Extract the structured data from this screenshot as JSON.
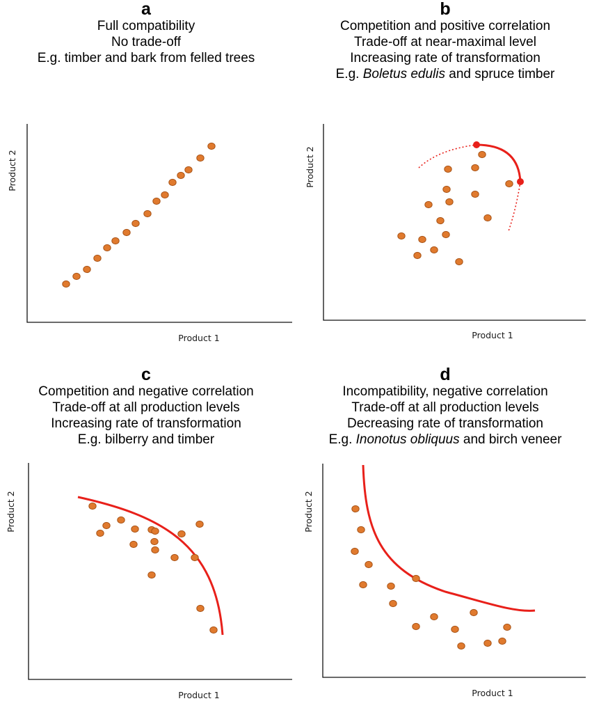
{
  "panels": [
    {
      "id": "a",
      "letter": "a",
      "lines": [
        {
          "text": "Full compatibility"
        },
        {
          "text": "No trade-off"
        },
        {
          "text": "E.g. timber and bark from felled trees"
        }
      ],
      "xlabel": "Product 1",
      "ylabel": "Product 2",
      "relation": "full compatibility, no trade-off",
      "points": [
        [
          1.2,
          1.2
        ],
        [
          1.7,
          1.8
        ],
        [
          2.2,
          2.4
        ],
        [
          2.8,
          3.1
        ],
        [
          3.3,
          3.7
        ],
        [
          3.8,
          4.3
        ],
        [
          4.5,
          4.9
        ],
        [
          5.0,
          5.5
        ],
        [
          5.7,
          6.3
        ],
        [
          6.2,
          6.9
        ],
        [
          6.9,
          7.8
        ],
        [
          7.5,
          8.5
        ],
        [
          8.0,
          9.0
        ],
        [
          8.5,
          9.3
        ],
        [
          9.0,
          9.7
        ],
        [
          9.6,
          10.5
        ],
        [
          10.3,
          11.2
        ]
      ],
      "frontier": null
    },
    {
      "id": "b",
      "letter": "b",
      "lines": [
        {
          "text": "Competition and positive correlation"
        },
        {
          "text": "Trade-off at near-maximal level"
        },
        {
          "text": "Increasing rate of transformation"
        },
        {
          "text": "E.g. ",
          "italic": "Boletus edulis",
          "rest": " and spruce timber"
        }
      ],
      "xlabel": "Product 1",
      "ylabel": "Product 2",
      "relation": "competition and positive correlation, trade-off at near-maximal level",
      "points": [
        [
          4.3,
          4.5
        ],
        [
          5.0,
          4.2
        ],
        [
          5.0,
          3.3
        ],
        [
          5.7,
          3.6
        ],
        [
          6.1,
          5.3
        ],
        [
          6.3,
          6.9
        ],
        [
          6.5,
          5.0
        ],
        [
          6.7,
          7.5
        ],
        [
          6.8,
          8.5
        ],
        [
          7.2,
          3.0
        ],
        [
          7.6,
          6.1
        ],
        [
          7.8,
          7.6
        ],
        [
          7.9,
          8.8
        ],
        [
          8.6,
          5.6
        ],
        [
          9.6,
          7.2
        ],
        [
          8.1,
          9.1
        ]
      ],
      "frontier": "concave arc near the maximum of both products, with dotted extensions",
      "frontier_endpoints": [
        [
          7.9,
          10.0
        ],
        [
          10.1,
          7.4
        ]
      ]
    },
    {
      "id": "c",
      "letter": "c",
      "lines": [
        {
          "text": "Competition and negative correlation"
        },
        {
          "text": "Trade-off at all production levels"
        },
        {
          "text": "Increasing rate of transformation"
        },
        {
          "text": "E.g. bilberry and timber"
        }
      ],
      "xlabel": "Product 1",
      "ylabel": "Product 2",
      "relation": "competition and negative correlation, trade-off at all levels, increasing rate of transformation",
      "points": [
        [
          2.6,
          9.6
        ],
        [
          3.2,
          8.4
        ],
        [
          3.1,
          6.6
        ],
        [
          3.9,
          8.6
        ],
        [
          4.8,
          6.8
        ],
        [
          4.8,
          6.1
        ],
        [
          5.5,
          6.8
        ],
        [
          5.5,
          6.2
        ],
        [
          5.6,
          7.9
        ],
        [
          5.5,
          4.4
        ],
        [
          6.5,
          5.4
        ],
        [
          6.9,
          6.5
        ],
        [
          7.4,
          5.4
        ],
        [
          7.6,
          6.0
        ],
        [
          7.5,
          3.5
        ],
        [
          8.3,
          2.3
        ]
      ],
      "frontier": "concave curve from upper-left bending down to lower-right"
    },
    {
      "id": "d",
      "letter": "d",
      "lines": [
        {
          "text": "Incompatibility, negative correlation"
        },
        {
          "text": "Trade-off at all production levels"
        },
        {
          "text": "Decreasing rate of transformation"
        },
        {
          "text": "E.g. ",
          "italic": "Inonotus obliquus",
          "rest": " and birch veneer"
        }
      ],
      "xlabel": "Product 1",
      "ylabel": "Product 2",
      "relation": "incompatibility, negative correlation, trade-off at all levels, decreasing rate of transformation",
      "points": [
        [
          1.2,
          10.8
        ],
        [
          1.5,
          9.7
        ],
        [
          1.2,
          8.4
        ],
        [
          1.7,
          7.6
        ],
        [
          1.6,
          5.9
        ],
        [
          3.1,
          5.8
        ],
        [
          3.2,
          4.7
        ],
        [
          4.2,
          5.2
        ],
        [
          4.2,
          3.6
        ],
        [
          5.1,
          4.0
        ],
        [
          6.1,
          3.5
        ],
        [
          6.9,
          4.5
        ],
        [
          6.5,
          2.5
        ],
        [
          7.6,
          2.7
        ],
        [
          8.2,
          2.8
        ],
        [
          8.5,
          3.5
        ]
      ],
      "frontier": "convex curve from top-left falling steeply then flattening to the right"
    }
  ]
}
